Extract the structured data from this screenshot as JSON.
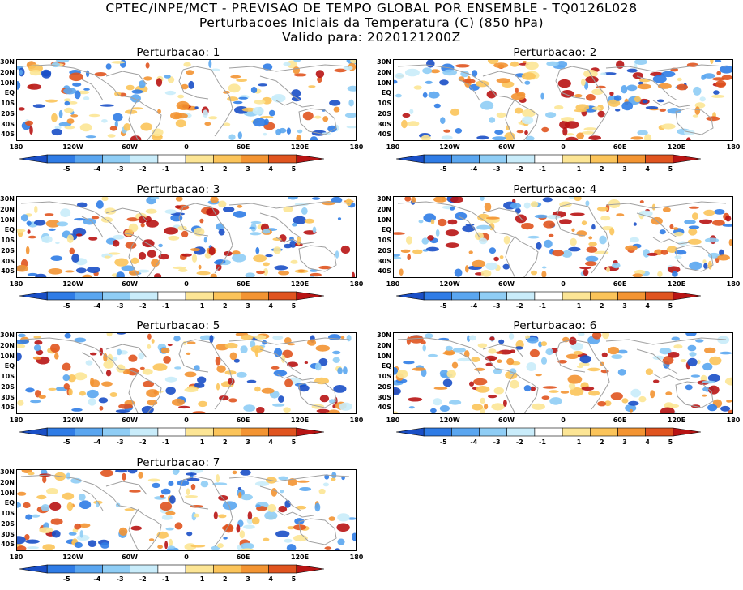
{
  "header": {
    "line1": "CPTEC/INPE/MCT - PREVISAO DE TEMPO GLOBAL POR ENSEMBLE - TQ0126L028",
    "line2": "Perturbacoes Iniciais da Temperatura (C) (850 hPa)",
    "line3": "Valido para: 2020121200Z"
  },
  "colors": {
    "neg5": "#1a4fc6",
    "neg4": "#2f7ce6",
    "neg3": "#5aa6f0",
    "neg2": "#8fcdf5",
    "neg1": "#c9ecfa",
    "zero": "#ffffff",
    "pos1": "#fce595",
    "pos2": "#fbc45a",
    "pos3": "#f39432",
    "pos4": "#e0541f",
    "pos5": "#b81414",
    "land": "#a0a0a0"
  },
  "chart_data": [
    {
      "type": "heatmap",
      "title": "Perturbacao: 1",
      "seed": 11
    },
    {
      "type": "heatmap",
      "title": "Perturbacao: 2",
      "seed": 23
    },
    {
      "type": "heatmap",
      "title": "Perturbacao: 3",
      "seed": 37
    },
    {
      "type": "heatmap",
      "title": "Perturbacao: 4",
      "seed": 41
    },
    {
      "type": "heatmap",
      "title": "Perturbacao: 5",
      "seed": 53
    },
    {
      "type": "heatmap",
      "title": "Perturbacao: 6",
      "seed": 67
    },
    {
      "type": "heatmap",
      "title": "Perturbacao: 7",
      "seed": 79
    }
  ],
  "axes": {
    "y_ticks": [
      "30N",
      "20N",
      "10N",
      "EQ",
      "10S",
      "20S",
      "30S",
      "40S"
    ],
    "x_ticks": [
      "180",
      "120W",
      "60W",
      "0",
      "60E",
      "120E",
      "180"
    ]
  },
  "colorbar": {
    "ticks": [
      "-5",
      "-4",
      "-3",
      "-2",
      "-1",
      "1",
      "2",
      "3",
      "4",
      "5"
    ]
  }
}
